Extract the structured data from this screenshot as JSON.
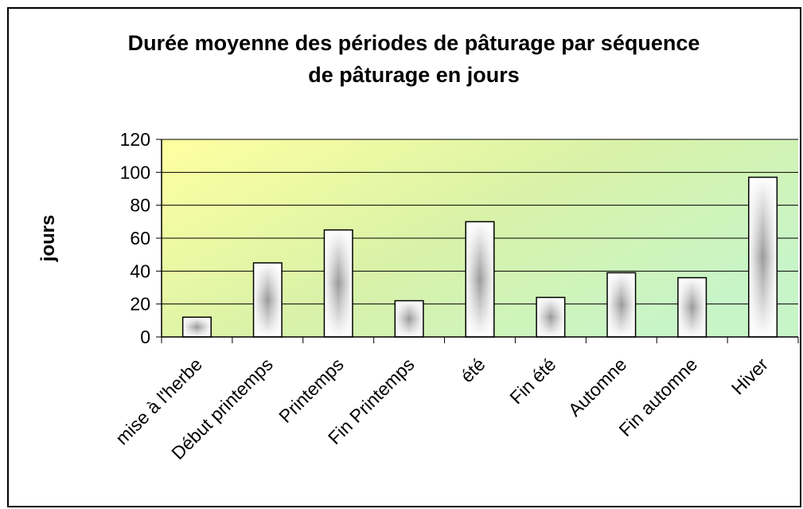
{
  "chart_data": {
    "type": "bar",
    "title": "Durée moyenne des périodes de pâturage par séquence de pâturage en jours",
    "y_label": "jours",
    "categories": [
      "mise à l'herbe",
      "Début printemps",
      "Printemps",
      "Fin Printemps",
      "été",
      "Fin été",
      "Automne",
      "Fin automne",
      "Hiver"
    ],
    "values": [
      12,
      45,
      65,
      22,
      70,
      24,
      39,
      36,
      97
    ],
    "ylim": [
      0,
      120
    ],
    "yticks": [
      0,
      20,
      40,
      60,
      80,
      100,
      120
    ],
    "grid": true
  }
}
